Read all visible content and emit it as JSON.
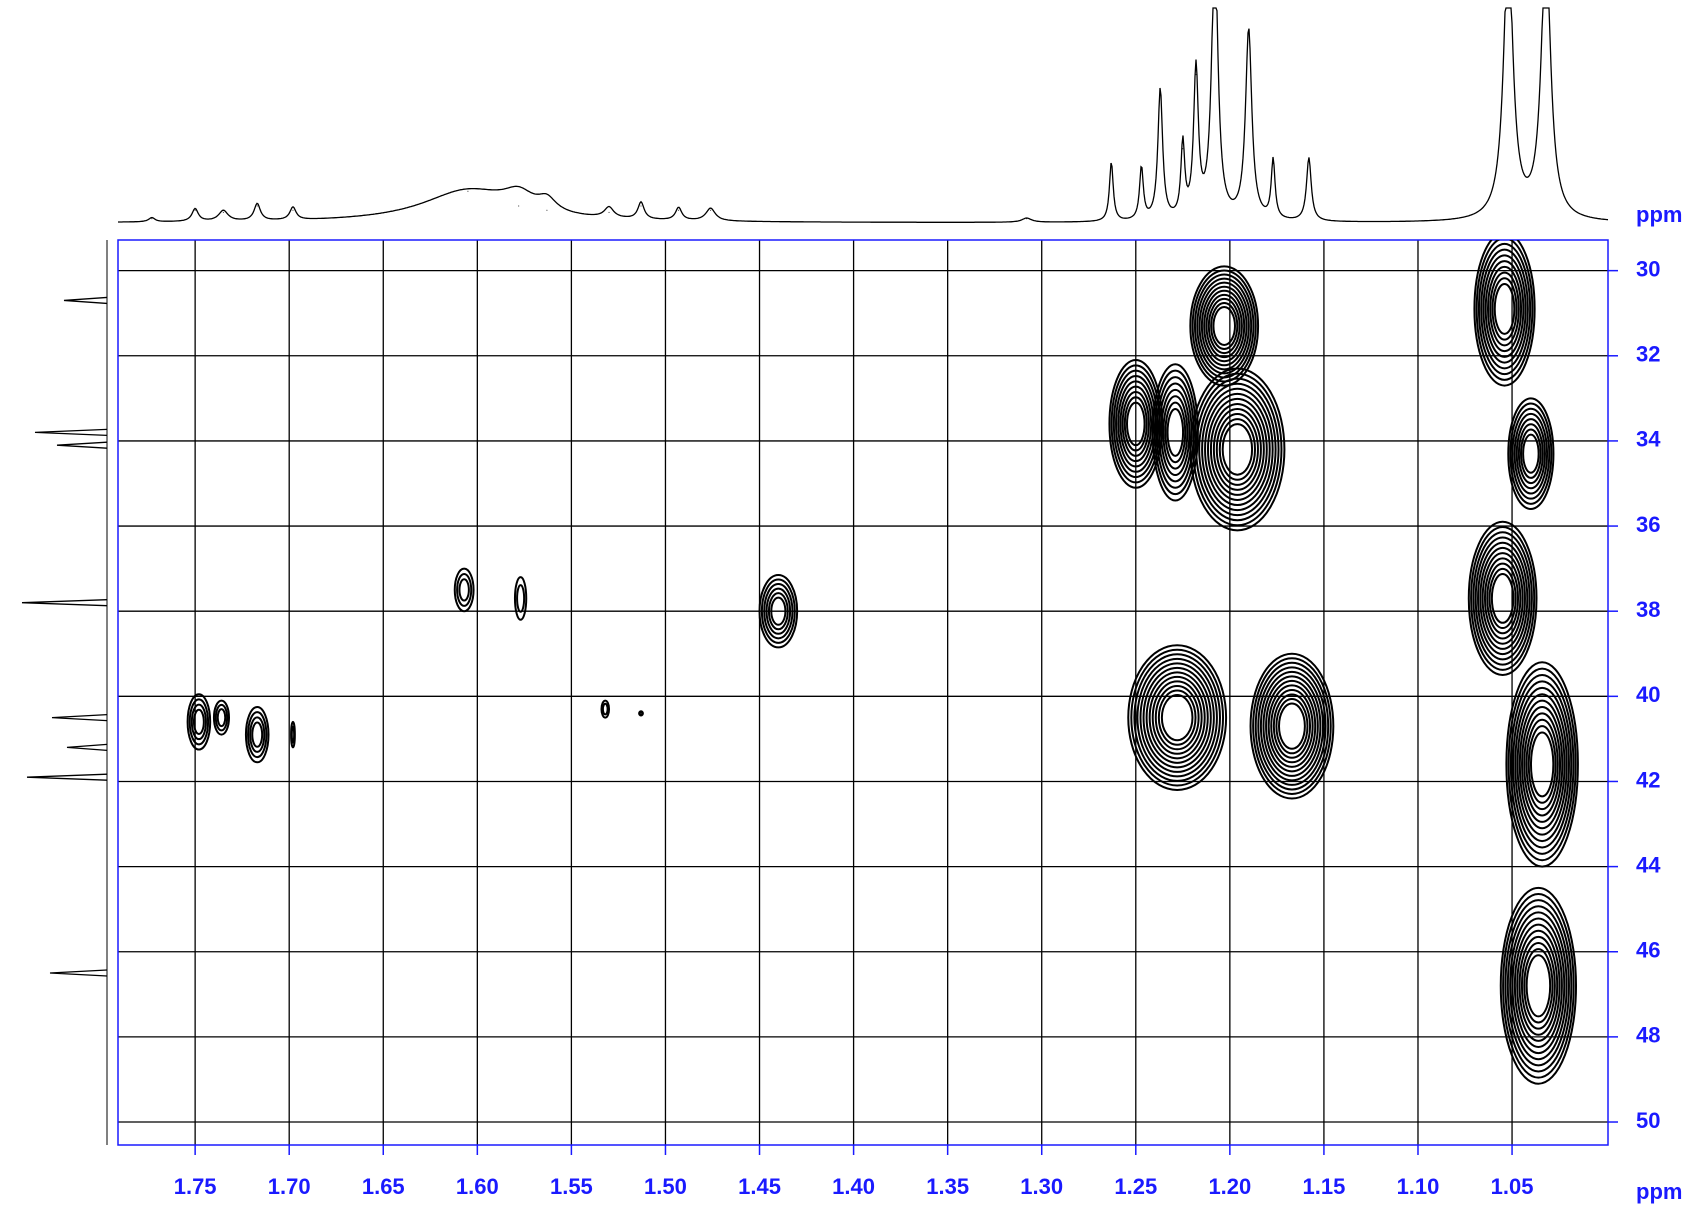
{
  "chart_data": {
    "type": "contour",
    "x_label": "ppm",
    "y_label": "ppm",
    "xlim": [
      1.791,
      0.999
    ],
    "ylim": [
      29.28,
      50.54
    ],
    "xticks": [
      1.75,
      {
        "value": 1.7,
        "label": "1.70"
      },
      1.65,
      {
        "value": 1.6,
        "label": "1.60"
      },
      1.55,
      {
        "value": 1.5,
        "label": "1.50"
      },
      1.45,
      {
        "value": 1.4,
        "label": "1.40"
      },
      1.35,
      {
        "value": 1.3,
        "label": "1.30"
      },
      1.25,
      {
        "value": 1.2,
        "label": "1.20"
      },
      1.15,
      {
        "value": 1.1,
        "label": "1.10"
      },
      1.05
    ],
    "yticks": [
      30,
      32,
      34,
      36,
      38,
      40,
      42,
      44,
      46,
      48,
      50
    ],
    "grid": true,
    "color": "#1a1aff",
    "peaks": {
      "x": [
        1.748,
        1.736,
        1.717,
        1.698,
        1.607,
        1.577,
        1.532,
        1.513,
        1.44,
        1.25,
        1.229,
        1.196,
        1.203,
        1.228,
        1.167,
        1.054,
        1.04,
        1.055,
        1.034,
        1.036
      ],
      "y": [
        40.6,
        40.5,
        40.9,
        40.9,
        37.5,
        37.7,
        40.3,
        40.4,
        38.0,
        33.6,
        33.8,
        34.2,
        31.3,
        40.5,
        40.7,
        30.9,
        34.3,
        37.7,
        41.6,
        46.8
      ],
      "x_width": [
        0.006,
        0.004,
        0.006,
        0.001,
        0.005,
        0.003,
        0.002,
        0.001,
        0.01,
        0.014,
        0.012,
        0.025,
        0.018,
        0.026,
        0.022,
        0.016,
        0.012,
        0.018,
        0.019,
        0.02
      ],
      "y_width": [
        1.3,
        0.8,
        1.3,
        0.6,
        1.0,
        1.0,
        0.4,
        0.1,
        1.7,
        3.0,
        3.2,
        3.8,
        2.8,
        3.4,
        3.4,
        3.6,
        2.6,
        3.6,
        4.8,
        4.6
      ]
    },
    "projection_top": {
      "x": [
        1.773,
        1.75,
        1.735,
        1.717,
        1.698,
        1.605,
        1.578,
        1.563,
        1.53,
        1.513,
        1.493,
        1.476,
        1.308,
        1.263,
        1.247,
        1.237,
        1.225,
        1.218,
        1.208,
        1.19,
        1.177,
        1.158,
        1.052,
        1.032
      ],
      "values": [
        2,
        6,
        5,
        8,
        6,
        15,
        8,
        6,
        5,
        8,
        6,
        6,
        2,
        28,
        25,
        62,
        35,
        70,
        130,
        90,
        28,
        30,
        130,
        130
      ],
      "widths": [
        0.002,
        0.002,
        0.003,
        0.002,
        0.002,
        0.03,
        0.01,
        0.006,
        0.003,
        0.002,
        0.002,
        0.003,
        0.003,
        0.0012,
        0.0012,
        0.0015,
        0.0012,
        0.0015,
        0.002,
        0.002,
        0.0012,
        0.0015,
        0.003,
        0.003
      ]
    },
    "projection_left": {
      "y": [
        30.7,
        33.8,
        34.1,
        37.8,
        40.5,
        41.2,
        41.9,
        46.5
      ],
      "values": [
        43,
        72,
        50,
        85,
        55,
        40,
        80,
        57
      ]
    }
  }
}
